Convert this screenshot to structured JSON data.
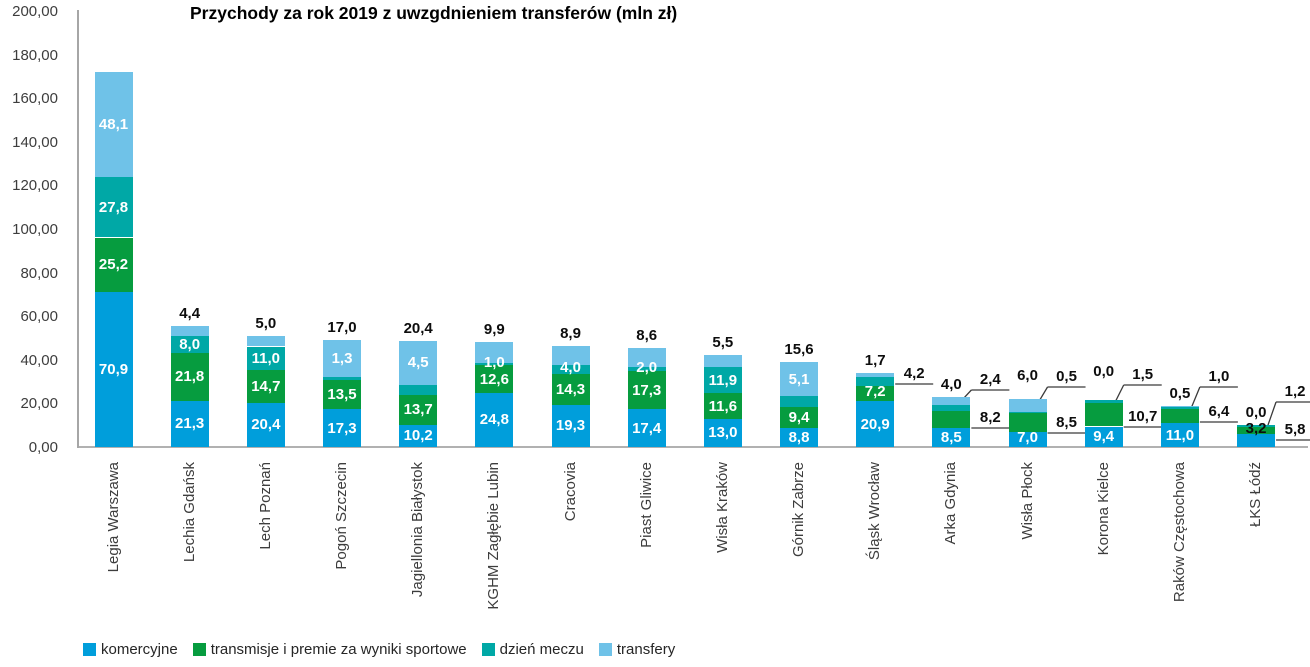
{
  "chart_data": {
    "type": "bar",
    "stacked": true,
    "title": "Przychody za rok 2019 z uwzgdnieniem transferów (mln zł)",
    "grid": false,
    "legend_position": "bottom",
    "y_axis": {
      "min": 0,
      "max": 200,
      "step": 20,
      "tick_labels": [
        "0,00",
        "20,00",
        "40,00",
        "60,00",
        "80,00",
        "100,00",
        "120,00",
        "140,00",
        "160,00",
        "180,00",
        "200,00"
      ]
    },
    "categories": [
      "Legia Warszawa",
      "Lechia Gdańsk",
      "Lech Poznań",
      "Pogoń Szczecin",
      "Jagiellonia Białystok",
      "KGHM Zagłębie Lubin",
      "Cracovia",
      "Piast Gliwice",
      "Wisła Kraków",
      "Górnik Zabrze",
      "Śląsk Wrocław",
      "Arka Gdynia",
      "Wisła Płock",
      "Korona Kielce",
      "Raków Częstochowa",
      "ŁKS Łódź"
    ],
    "series": [
      {
        "key": "komercyjne",
        "name": "komercyjne",
        "color": "#009EDB",
        "values": [
          70.9,
          21.3,
          20.4,
          17.3,
          10.2,
          24.8,
          19.3,
          17.4,
          13.0,
          8.8,
          20.9,
          8.5,
          7.0,
          9.4,
          11.0,
          5.8
        ]
      },
      {
        "key": "transmisje",
        "name": "transmisje i premie za wyniki sportowe",
        "color": "#069C3F",
        "values": [
          25.2,
          21.8,
          14.7,
          13.5,
          13.7,
          12.6,
          14.3,
          17.3,
          11.6,
          9.4,
          7.2,
          8.2,
          8.5,
          10.7,
          6.4,
          3.2
        ]
      },
      {
        "key": "dzien-meczu",
        "name": "dzień meczu",
        "color": "#00A8A6",
        "values": [
          27.8,
          8.0,
          11.0,
          1.3,
          4.5,
          1.0,
          4.0,
          2.0,
          11.9,
          5.1,
          4.2,
          2.4,
          0.5,
          1.5,
          1.0,
          1.2
        ]
      },
      {
        "key": "transfery",
        "name": "transfery",
        "color": "#6FC2E8",
        "values": [
          48.1,
          4.4,
          5.0,
          17.0,
          20.4,
          9.9,
          8.9,
          8.6,
          5.5,
          15.6,
          1.7,
          4.0,
          6.0,
          0.0,
          0.5,
          0.0
        ]
      }
    ],
    "label_layout": [
      {
        "pos": [
          "in",
          "in",
          "in",
          "in"
        ]
      },
      {
        "pos": [
          "in",
          "in",
          "in",
          "above"
        ]
      },
      {
        "pos": [
          "in",
          "in",
          "in",
          "above"
        ]
      },
      {
        "pos": [
          "in",
          "in",
          "in",
          "above"
        ]
      },
      {
        "pos": [
          "in",
          "in",
          "in",
          "above"
        ]
      },
      {
        "pos": [
          "in",
          "in",
          "in",
          "above"
        ]
      },
      {
        "pos": [
          "in",
          "in",
          "in",
          "above"
        ]
      },
      {
        "pos": [
          "in",
          "in",
          "in",
          "above"
        ]
      },
      {
        "pos": [
          "in",
          "in",
          "in",
          "above"
        ]
      },
      {
        "pos": [
          "in",
          "in",
          "in",
          "above"
        ]
      },
      {
        "pos": [
          "in",
          "in",
          "co",
          "above"
        ],
        "callouts": [
          {
            "s": 2,
            "y": 384,
            "diag": false
          }
        ]
      },
      {
        "pos": [
          "in",
          "co",
          "co",
          "above"
        ],
        "callouts": [
          {
            "s": 1,
            "y": 428,
            "diag": false
          },
          {
            "s": 2,
            "y": 390,
            "diag": true
          }
        ]
      },
      {
        "pos": [
          "in",
          "co",
          "co",
          "above"
        ],
        "above_dy": -11,
        "callouts": [
          {
            "s": 1,
            "y": 433,
            "diag": false
          },
          {
            "s": 2,
            "y": 387,
            "diag": true
          }
        ]
      },
      {
        "pos": [
          "in",
          "co",
          "co",
          "above"
        ],
        "above_dy": -16,
        "callouts": [
          {
            "s": 1,
            "y": 427,
            "diag": false
          },
          {
            "s": 2,
            "y": 385,
            "diag": true
          }
        ]
      },
      {
        "pos": [
          "in",
          "co",
          "co",
          "above"
        ],
        "callouts": [
          {
            "s": 1,
            "y": 422,
            "diag": false
          },
          {
            "s": 2,
            "y": 387,
            "diag": true
          }
        ]
      },
      {
        "pos": [
          "co",
          "in-black",
          "co",
          "above"
        ],
        "callouts": [
          {
            "s": 0,
            "y": 440,
            "diag": false
          },
          {
            "s": 2,
            "y": 402,
            "diag": true
          }
        ]
      }
    ],
    "colors": {
      "axis_line": "#A6A6A6",
      "callout_line": "#3a3a3a",
      "tick_text": "#3d3d3d",
      "label_inside": "#ffffff",
      "label_outside": "#0d0d0d"
    }
  }
}
